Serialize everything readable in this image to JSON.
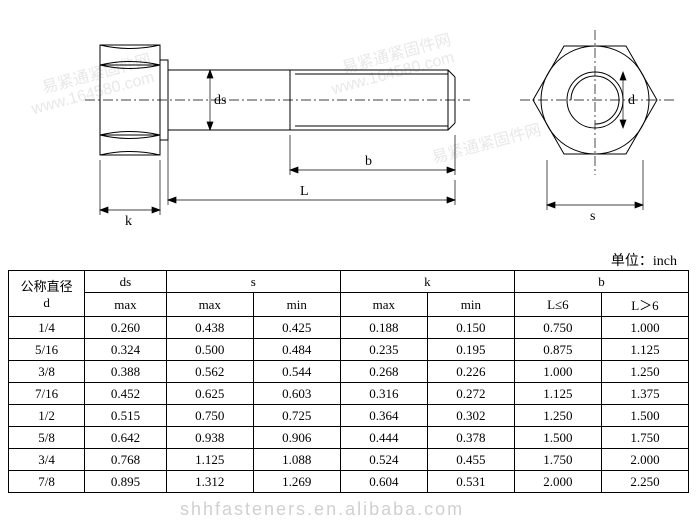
{
  "diagram": {
    "labels": {
      "ds": "ds",
      "d": "d",
      "b": "b",
      "L": "L",
      "k": "k",
      "s": "s"
    },
    "stroke": "#000000",
    "stroke_width": 1,
    "centerline_dash": "8 3 2 3",
    "background": "#ffffff"
  },
  "unit_text": "单位：inch",
  "table": {
    "headers": {
      "d": "公称直径\nd",
      "ds": "ds",
      "ds_sub": "max",
      "s": "s",
      "k": "k",
      "b": "b",
      "max": "max",
      "min": "min",
      "L_le6": "L≤6",
      "L_gt6": "L＞6"
    },
    "rows": [
      {
        "d": "1/4",
        "ds": "0.260",
        "smax": "0.438",
        "smin": "0.425",
        "kmax": "0.188",
        "kmin": "0.150",
        "b1": "0.750",
        "b2": "1.000"
      },
      {
        "d": "5/16",
        "ds": "0.324",
        "smax": "0.500",
        "smin": "0.484",
        "kmax": "0.235",
        "kmin": "0.195",
        "b1": "0.875",
        "b2": "1.125"
      },
      {
        "d": "3/8",
        "ds": "0.388",
        "smax": "0.562",
        "smin": "0.544",
        "kmax": "0.268",
        "kmin": "0.226",
        "b1": "1.000",
        "b2": "1.250"
      },
      {
        "d": "7/16",
        "ds": "0.452",
        "smax": "0.625",
        "smin": "0.603",
        "kmax": "0.316",
        "kmin": "0.272",
        "b1": "1.125",
        "b2": "1.375"
      },
      {
        "d": "1/2",
        "ds": "0.515",
        "smax": "0.750",
        "smin": "0.725",
        "kmax": "0.364",
        "kmin": "0.302",
        "b1": "1.250",
        "b2": "1.500"
      },
      {
        "d": "5/8",
        "ds": "0.642",
        "smax": "0.938",
        "smin": "0.906",
        "kmax": "0.444",
        "kmin": "0.378",
        "b1": "1.500",
        "b2": "1.750"
      },
      {
        "d": "3/4",
        "ds": "0.768",
        "smax": "1.125",
        "smin": "1.088",
        "kmax": "0.524",
        "kmin": "0.455",
        "b1": "1.750",
        "b2": "2.000"
      },
      {
        "d": "7/8",
        "ds": "0.895",
        "smax": "1.312",
        "smin": "1.269",
        "kmax": "0.604",
        "kmin": "0.531",
        "b1": "2.000",
        "b2": "2.250"
      }
    ]
  },
  "watermarks": {
    "wm1": "易紧通紧固件网",
    "wm2": "www.164580.com",
    "footer": "shhfasteners.en.alibaba.com"
  }
}
